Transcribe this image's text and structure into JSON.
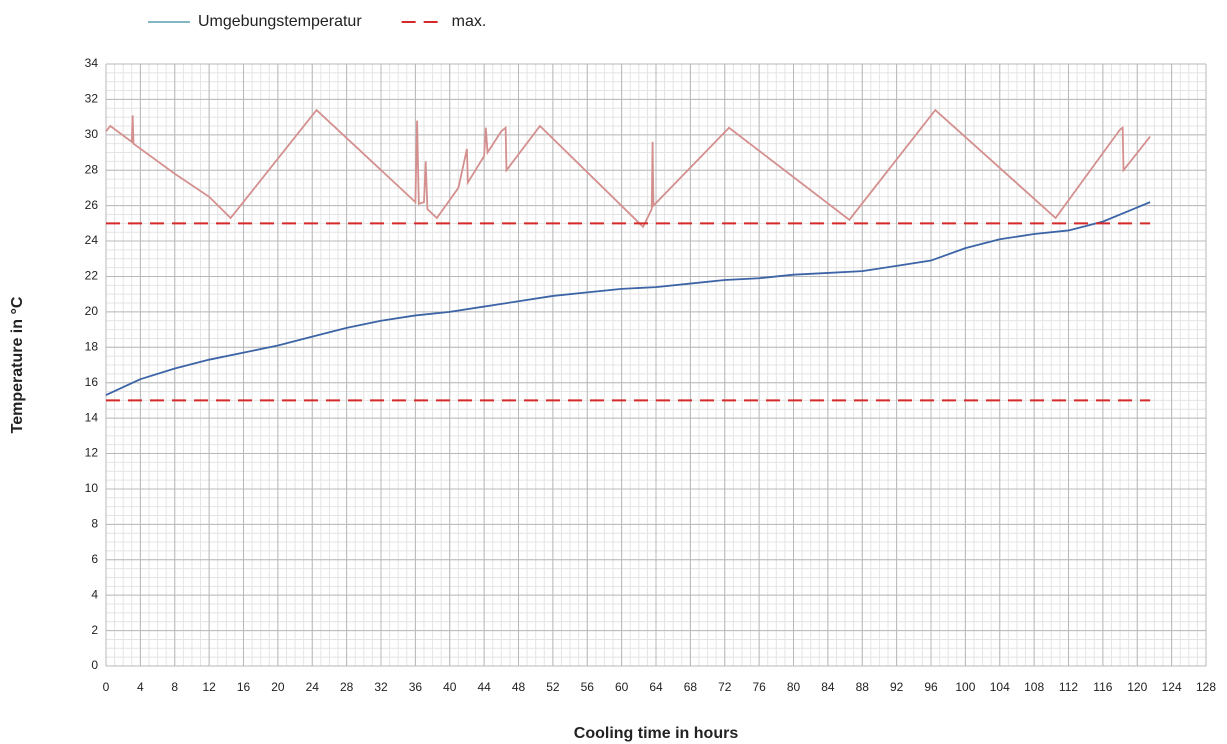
{
  "chart_data": {
    "type": "line",
    "xlabel": "Cooling time in hours",
    "ylabel": "Temperature in °C",
    "xlim": [
      0,
      128
    ],
    "ylim": [
      0,
      34
    ],
    "xticks": [
      0,
      4,
      8,
      12,
      16,
      20,
      24,
      28,
      32,
      36,
      40,
      44,
      48,
      52,
      56,
      60,
      64,
      68,
      72,
      76,
      80,
      84,
      88,
      92,
      96,
      100,
      104,
      108,
      112,
      116,
      120,
      124,
      128
    ],
    "yticks": [
      0,
      2,
      4,
      6,
      8,
      10,
      12,
      14,
      16,
      18,
      20,
      22,
      24,
      26,
      28,
      30,
      32,
      34
    ],
    "grid": true,
    "minor_grid": {
      "x": 1,
      "y": 0.5
    },
    "legend": "top-left",
    "series": [
      {
        "color": "#d4908f",
        "x": [
          0,
          0.5,
          3,
          3.1,
          3.2,
          8,
          12,
          14.5,
          24.5,
          36,
          36.2,
          36.4,
          37,
          37.2,
          37.4,
          38.5,
          41,
          42,
          42.1,
          44,
          44.2,
          44.4,
          46,
          46.5,
          46.6,
          50.5,
          62.5,
          63.5,
          63.6,
          63.7,
          72.5,
          86.5,
          96.5,
          110.5,
          118,
          118.3,
          118.4,
          121.5
        ],
        "values": [
          30.2,
          30.5,
          29.6,
          31.1,
          29.5,
          27.8,
          26.5,
          25.3,
          31.4,
          26.2,
          30.8,
          26.1,
          26.2,
          28.5,
          25.8,
          25.3,
          27,
          29.2,
          27.3,
          28.8,
          30.4,
          29,
          30.2,
          30.4,
          28,
          30.5,
          24.8,
          25.8,
          29.6,
          26,
          30.4,
          25.2,
          31.4,
          25.3,
          30.3,
          30.4,
          28,
          29.9
        ]
      },
      {
        "name": "Umgebungstemperatur",
        "color": "#3c64a6",
        "legend_color": "#5b9fb0",
        "x": [
          0,
          4,
          8,
          12,
          16,
          20,
          24,
          28,
          32,
          36,
          40,
          44,
          48,
          52,
          56,
          60,
          64,
          68,
          72,
          76,
          80,
          84,
          88,
          92,
          96,
          100,
          104,
          108,
          112,
          116,
          120,
          121.5
        ],
        "values": [
          15.3,
          16.2,
          16.8,
          17.3,
          17.7,
          18.1,
          18.6,
          19.1,
          19.5,
          19.8,
          20.0,
          20.3,
          20.6,
          20.9,
          21.1,
          21.3,
          21.4,
          21.6,
          21.8,
          21.9,
          22.1,
          22.2,
          22.3,
          22.6,
          22.9,
          23.6,
          24.1,
          24.4,
          24.6,
          25.1,
          25.9,
          26.2
        ]
      },
      {
        "name": "max.",
        "color": "#d42a2a",
        "dashed": true,
        "x": [
          0,
          121.5
        ],
        "values": [
          25,
          25
        ]
      },
      {
        "color": "#d42a2a",
        "dashed": true,
        "x": [
          0,
          121.5
        ],
        "values": [
          15,
          15
        ]
      }
    ]
  }
}
